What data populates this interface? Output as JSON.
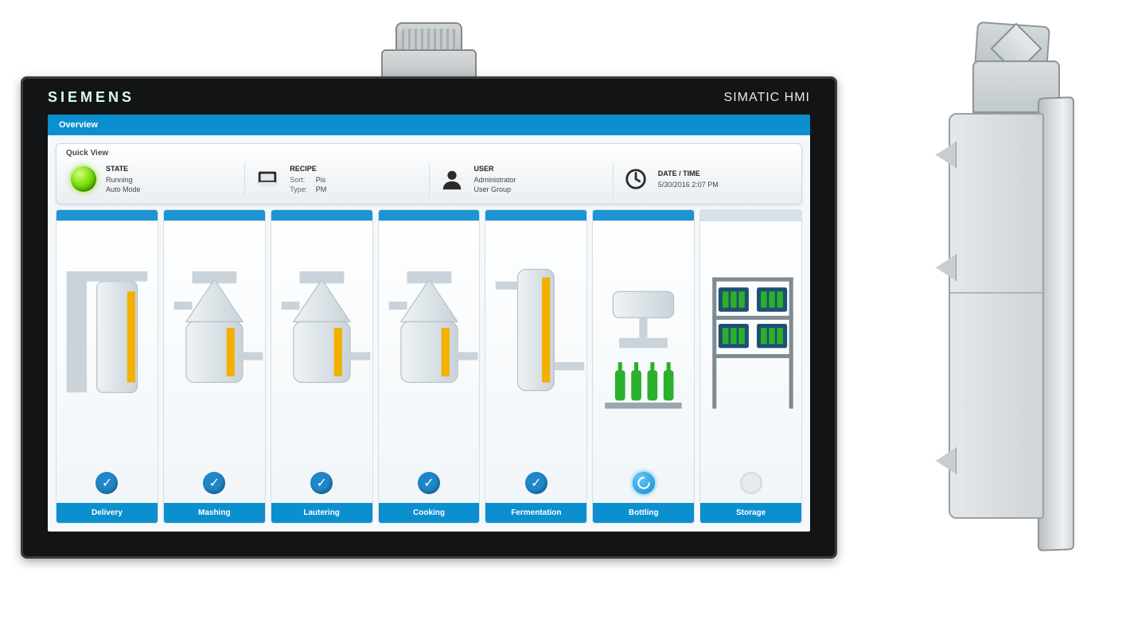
{
  "colors": {
    "accent": "#0b8fcf",
    "screen_bg": "#f4f8fb",
    "bezel": "#121416",
    "card_border": "#cfd6db",
    "state_lamp": "#6fd600",
    "hat_accent": "#1d94d3",
    "hat_muted": "#d9e2e8"
  },
  "bezel": {
    "brand": "SIEMENS",
    "model": "SIMATIC HMI"
  },
  "header": {
    "title": "Overview"
  },
  "quickview": {
    "title": "Quick View",
    "state": {
      "heading": "STATE",
      "line1": "Running",
      "line2": "Auto Mode"
    },
    "recipe": {
      "heading": "RECIPE",
      "sort_label": "Sort:",
      "sort_value": "Pis",
      "type_label": "Type:",
      "type_value": "PM"
    },
    "user": {
      "heading": "USER",
      "name": "Administrator",
      "group": "User Group"
    },
    "datetime": {
      "heading": "DATE / TIME",
      "value": "5/30/2016 2:07 PM"
    }
  },
  "process": {
    "columns": [
      {
        "label": "Delivery",
        "status": "done",
        "hat": "accent",
        "graphic": "silo"
      },
      {
        "label": "Mashing",
        "status": "done",
        "hat": "accent",
        "graphic": "kettle"
      },
      {
        "label": "Lautering",
        "status": "done",
        "hat": "accent",
        "graphic": "kettle"
      },
      {
        "label": "Cooking",
        "status": "done",
        "hat": "accent",
        "graphic": "kettle"
      },
      {
        "label": "Fermentation",
        "status": "done",
        "hat": "accent",
        "graphic": "tank"
      },
      {
        "label": "Bottling",
        "status": "active",
        "hat": "accent",
        "graphic": "bottling"
      },
      {
        "label": "Storage",
        "status": "idle",
        "hat": "muted",
        "graphic": "shelf"
      }
    ],
    "level_color": "#f3b000",
    "bottle_color": "#2bb02b",
    "vessel_fill_start": "#eef3f6",
    "vessel_fill_end": "#c9d3d9",
    "pipe_color": "#c9d3d9"
  },
  "side_view": {
    "seams_pct": [
      44
    ],
    "lugs_pct": [
      10,
      38,
      86
    ]
  }
}
